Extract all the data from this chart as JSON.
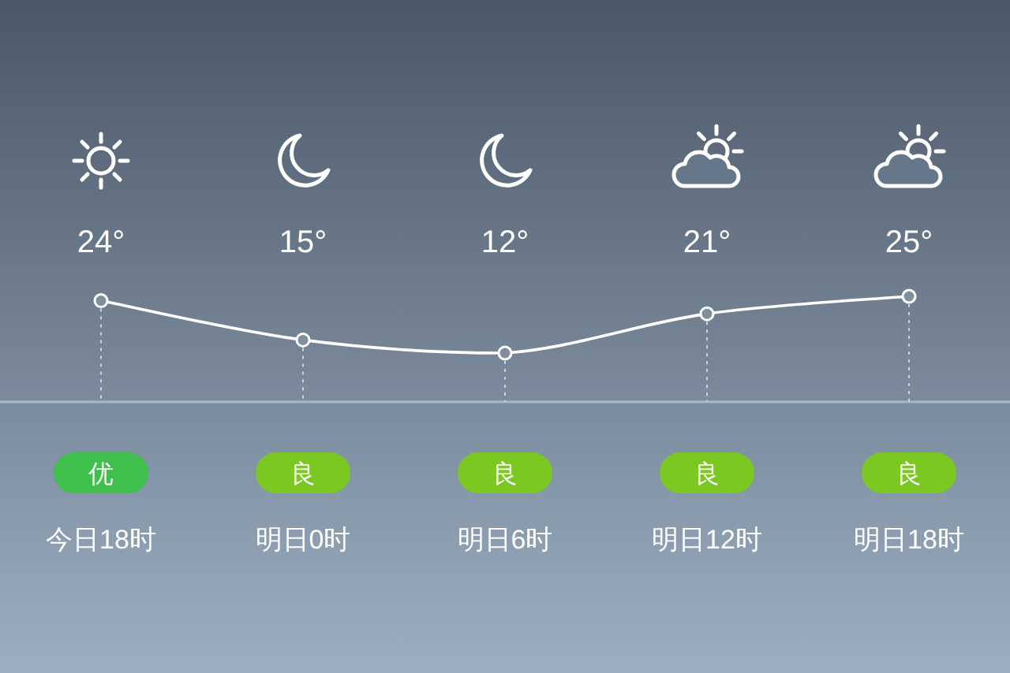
{
  "chart_data": {
    "type": "line",
    "categories": [
      "今日18时",
      "明日0时",
      "明日6时",
      "明日12时",
      "明日18时"
    ],
    "series": [
      {
        "color": "#ffffff",
        "values": [
          24,
          15,
          12,
          21,
          25
        ],
        "value_labels": [
          "24°",
          "15°",
          "12°",
          "21°",
          "25°"
        ]
      }
    ],
    "marker": "circle",
    "line_style": "solid",
    "grid": "x",
    "annotations": [
      "优",
      "良",
      "良",
      "良",
      "良"
    ]
  }
}
